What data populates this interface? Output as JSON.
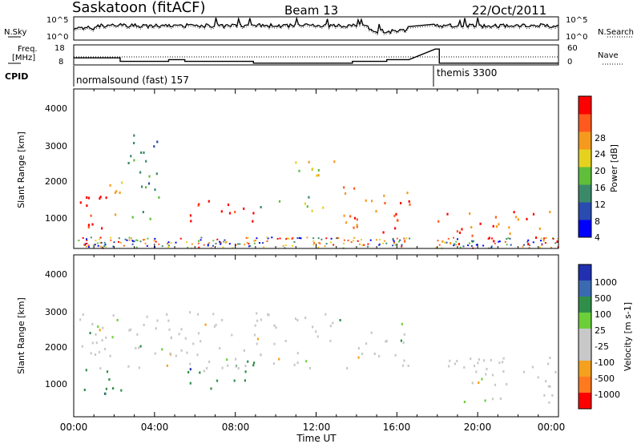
{
  "header": {
    "station": "Saskatoon (fitACF)",
    "beam": "Beam 13",
    "date": "22/Oct/2011"
  },
  "noise_panel": {
    "left_label": "N.Sky",
    "right_label": "N.Search",
    "left_ticks": [
      "10^5",
      "10^0"
    ],
    "right_ticks": [
      "10^5",
      "10^0"
    ]
  },
  "freq_panel": {
    "left_label_line1": "Freq.",
    "left_label_line2": "[MHz]",
    "left_ticks": [
      "18",
      "8"
    ],
    "right_label": "Nave",
    "right_ticks": [
      "60",
      "0"
    ]
  },
  "cpid": {
    "label": "CPID",
    "programs": [
      {
        "name": "normalsound (fast) 157",
        "start_hour": 0
      },
      {
        "name": "themis 3300",
        "start_hour": 17.9
      }
    ]
  },
  "x_axis": {
    "label": "Time UT",
    "ticks": [
      "00:00",
      "04:00",
      "08:00",
      "12:00",
      "16:00",
      "20:00",
      "00:00"
    ],
    "range_hours": [
      0,
      24
    ]
  },
  "power_panel": {
    "ylabel": "Slant Range [km]",
    "yticks": [
      "4000",
      "3000",
      "2000",
      "1000"
    ],
    "colorbar_label": "Power [dB]",
    "colorbar_ticks": [
      "28",
      "24",
      "20",
      "16",
      "12",
      "8",
      "4"
    ],
    "colors": [
      "#0000ff",
      "#2a4bb0",
      "#3a8a6a",
      "#5fbf3a",
      "#e6d21e",
      "#f59a1e",
      "#ff5a1e",
      "#ff0000"
    ]
  },
  "velocity_panel": {
    "ylabel": "Slant Range [km]",
    "yticks": [
      "4000",
      "3000",
      "2000",
      "1000"
    ],
    "colorbar_label": "Velocity [m s-1]",
    "colorbar_ticks": [
      "1000",
      "500",
      "100",
      "25",
      "-25",
      "-100",
      "-500",
      "-1000"
    ],
    "colors": [
      "#2030b0",
      "#3a6ab0",
      "#2f8f4a",
      "#6ccf3a",
      "#c8c8c8",
      "#c8c8c8",
      "#f5a01e",
      "#ff7a1e",
      "#ff0000"
    ]
  },
  "chart_data": {
    "type": "heatmap",
    "title": "Saskatoon (fitACF) Beam 13 22/Oct/2011",
    "xlabel": "Time UT",
    "ylabel": "Slant Range [km]",
    "xlim_hours": [
      0,
      24
    ],
    "ylim_km": [
      180,
      4500
    ],
    "data_gap_hours": [
      [
        16.6,
        17.8
      ]
    ],
    "frequency_mhz_segments": [
      {
        "from": 0,
        "to": 2.3,
        "value": 12
      },
      {
        "from": 2.3,
        "to": 4.7,
        "value": 10
      },
      {
        "from": 4.7,
        "to": 5.5,
        "value": 11
      },
      {
        "from": 5.5,
        "to": 8.9,
        "value": 10
      },
      {
        "from": 8.9,
        "to": 13.8,
        "value": 9
      },
      {
        "from": 13.8,
        "to": 15.5,
        "value": 10
      },
      {
        "from": 15.5,
        "to": 16.6,
        "value": 11
      },
      {
        "from": 17.9,
        "to": 18.1,
        "value": 17
      },
      {
        "from": 18.1,
        "to": 24,
        "value": 9
      }
    ],
    "power_regions": [
      {
        "t0": 0,
        "t1": 1.6,
        "r0": 700,
        "r1": 2100,
        "level": 7
      },
      {
        "t0": 1.6,
        "t1": 2.6,
        "r0": 1000,
        "r1": 2000,
        "level": 4
      },
      {
        "t0": 2.6,
        "t1": 4.2,
        "r0": 900,
        "r1": 3300,
        "level": 2
      },
      {
        "t0": 5.6,
        "t1": 9.2,
        "r0": 900,
        "r1": 1500,
        "level": 7
      },
      {
        "t0": 9.2,
        "t1": 12.4,
        "r0": 1200,
        "r1": 1600,
        "level": 3
      },
      {
        "t0": 10.0,
        "t1": 13.2,
        "r0": 2100,
        "r1": 2600,
        "level": 4
      },
      {
        "t0": 13.0,
        "t1": 16.6,
        "r0": 600,
        "r1": 1900,
        "level": 6
      },
      {
        "t0": 17.9,
        "t1": 24,
        "r0": 300,
        "r1": 1200,
        "level": 6
      }
    ],
    "velocity_regions": [
      {
        "t0": 0,
        "t1": 2.5,
        "r0": 800,
        "r1": 1500,
        "value_ms": 100
      },
      {
        "t0": 5.6,
        "t1": 9.2,
        "r0": 900,
        "r1": 1700,
        "value_ms": 100
      },
      {
        "t0": 0,
        "t1": 16.6,
        "r0": 1500,
        "r1": 3000,
        "value_ms": 0
      },
      {
        "t0": 17.9,
        "t1": 24,
        "r0": 500,
        "r1": 1800,
        "value_ms": 0
      }
    ]
  }
}
